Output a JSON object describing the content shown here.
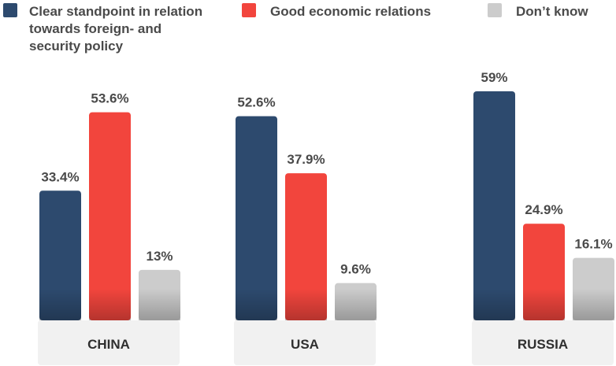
{
  "chart_data": {
    "type": "bar",
    "categories": [
      "CHINA",
      "USA",
      "RUSSIA"
    ],
    "series": [
      {
        "name": "Clear standpoint in relation towards foreign- and security policy",
        "values": [
          33.4,
          52.6,
          59
        ],
        "labels": [
          "33.4%",
          "52.6%",
          "59%"
        ]
      },
      {
        "name": "Good economic relations",
        "values": [
          53.6,
          37.9,
          24.9
        ],
        "labels": [
          "53.6%",
          "37.9%",
          "24.9%"
        ]
      },
      {
        "name": "Don’t know",
        "values": [
          13,
          9.6,
          16.1
        ],
        "labels": [
          "13%",
          "9.6%",
          "16.1%"
        ]
      }
    ],
    "legend": {
      "placement": "top",
      "entries": [
        {
          "lines": [
            "Clear standpoint in relation",
            "towards foreign- and",
            "security policy"
          ]
        },
        {
          "lines": [
            "Good economic relations"
          ]
        },
        {
          "lines": [
            "Don’t know"
          ]
        }
      ]
    },
    "ylim": [
      0,
      70
    ],
    "grid": false,
    "colors": [
      "#2d4a6e",
      "#f2453d",
      "#cccccc"
    ],
    "category_box_color": "#f1f1f1"
  }
}
